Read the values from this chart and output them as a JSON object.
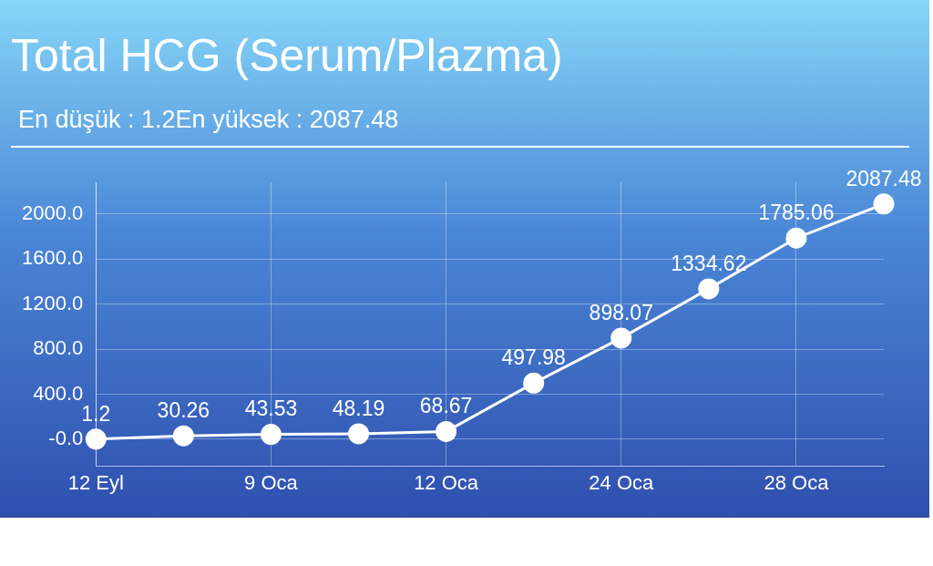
{
  "chart_data": {
    "type": "line",
    "title": "Total HCG (Serum/Plazma)",
    "subtitle": "En düşük : 1.2En yüksek : 2087.48",
    "categories": [
      "12 Eyl",
      null,
      "9 Oca",
      null,
      "12 Oca",
      null,
      "24 Oca",
      null,
      "28 Oca",
      null
    ],
    "series": [
      {
        "color": "#ffffff",
        "values": [
          1.2,
          30.26,
          43.53,
          48.19,
          68.67,
          497.98,
          898.07,
          1334.62,
          1785.06,
          2087.48
        ]
      }
    ],
    "ylim": [
      -240,
      2280
    ],
    "yticks": [
      {
        "value": 0,
        "label": "-0.0"
      },
      {
        "value": 400,
        "label": "400.0"
      },
      {
        "value": 800,
        "label": "800.0"
      },
      {
        "value": 1200,
        "label": "1200.0"
      },
      {
        "value": 1600,
        "label": "1600.0"
      },
      {
        "value": 2000,
        "label": "2000.0"
      }
    ],
    "grid": true,
    "legend": false,
    "marker": "circle",
    "line_style": "solid",
    "data_labels": true
  }
}
